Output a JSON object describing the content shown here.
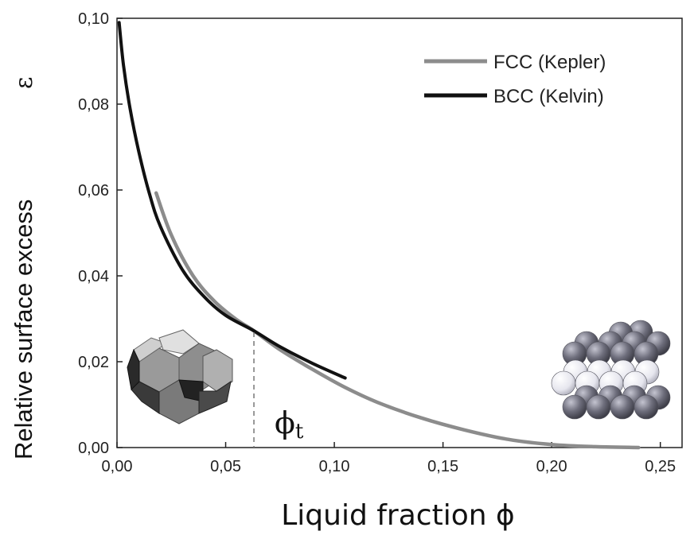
{
  "chart_data": {
    "type": "line",
    "xlabel": "Liquid fraction ϕ",
    "ylabel": "Relative surface excess",
    "ylabel_symbol": "ε",
    "xlim": [
      0,
      0.26
    ],
    "ylim": [
      0,
      0.1
    ],
    "x_ticks": [
      0,
      0.05,
      0.1,
      0.15,
      0.2,
      0.25
    ],
    "x_tick_labels": [
      "0,00",
      "0,05",
      "0,10",
      "0,15",
      "0,20",
      "0,25"
    ],
    "y_ticks": [
      0,
      0.02,
      0.04,
      0.06,
      0.08,
      0.1
    ],
    "y_tick_labels": [
      "0,00",
      "0,02",
      "0,04",
      "0,06",
      "0,08",
      "0,10"
    ],
    "grid": false,
    "legend_position": "top-right",
    "series": [
      {
        "name": "FCC (Kepler)",
        "color": "#8c8c8c",
        "x": [
          0.018,
          0.025,
          0.035,
          0.045,
          0.055,
          0.063,
          0.075,
          0.09,
          0.105,
          0.12,
          0.14,
          0.16,
          0.18,
          0.2,
          0.22,
          0.24
        ],
        "y": [
          0.0593,
          0.0495,
          0.04,
          0.034,
          0.0298,
          0.0272,
          0.0228,
          0.0182,
          0.014,
          0.0105,
          0.0069,
          0.0041,
          0.0019,
          0.0007,
          0.0002,
          0.0
        ]
      },
      {
        "name": "BCC (Kelvin)",
        "color": "#111111",
        "x": [
          0.001,
          0.003,
          0.006,
          0.01,
          0.015,
          0.02,
          0.03,
          0.04,
          0.05,
          0.063,
          0.075,
          0.09,
          0.105
        ],
        "y": [
          0.099,
          0.089,
          0.079,
          0.069,
          0.059,
          0.0515,
          0.0415,
          0.0352,
          0.0308,
          0.0272,
          0.0235,
          0.0196,
          0.0162
        ]
      }
    ],
    "annotations": [
      {
        "text": "ϕ",
        "subscript": "t",
        "x": 0.063,
        "note": "dashed vertical marker"
      }
    ]
  }
}
